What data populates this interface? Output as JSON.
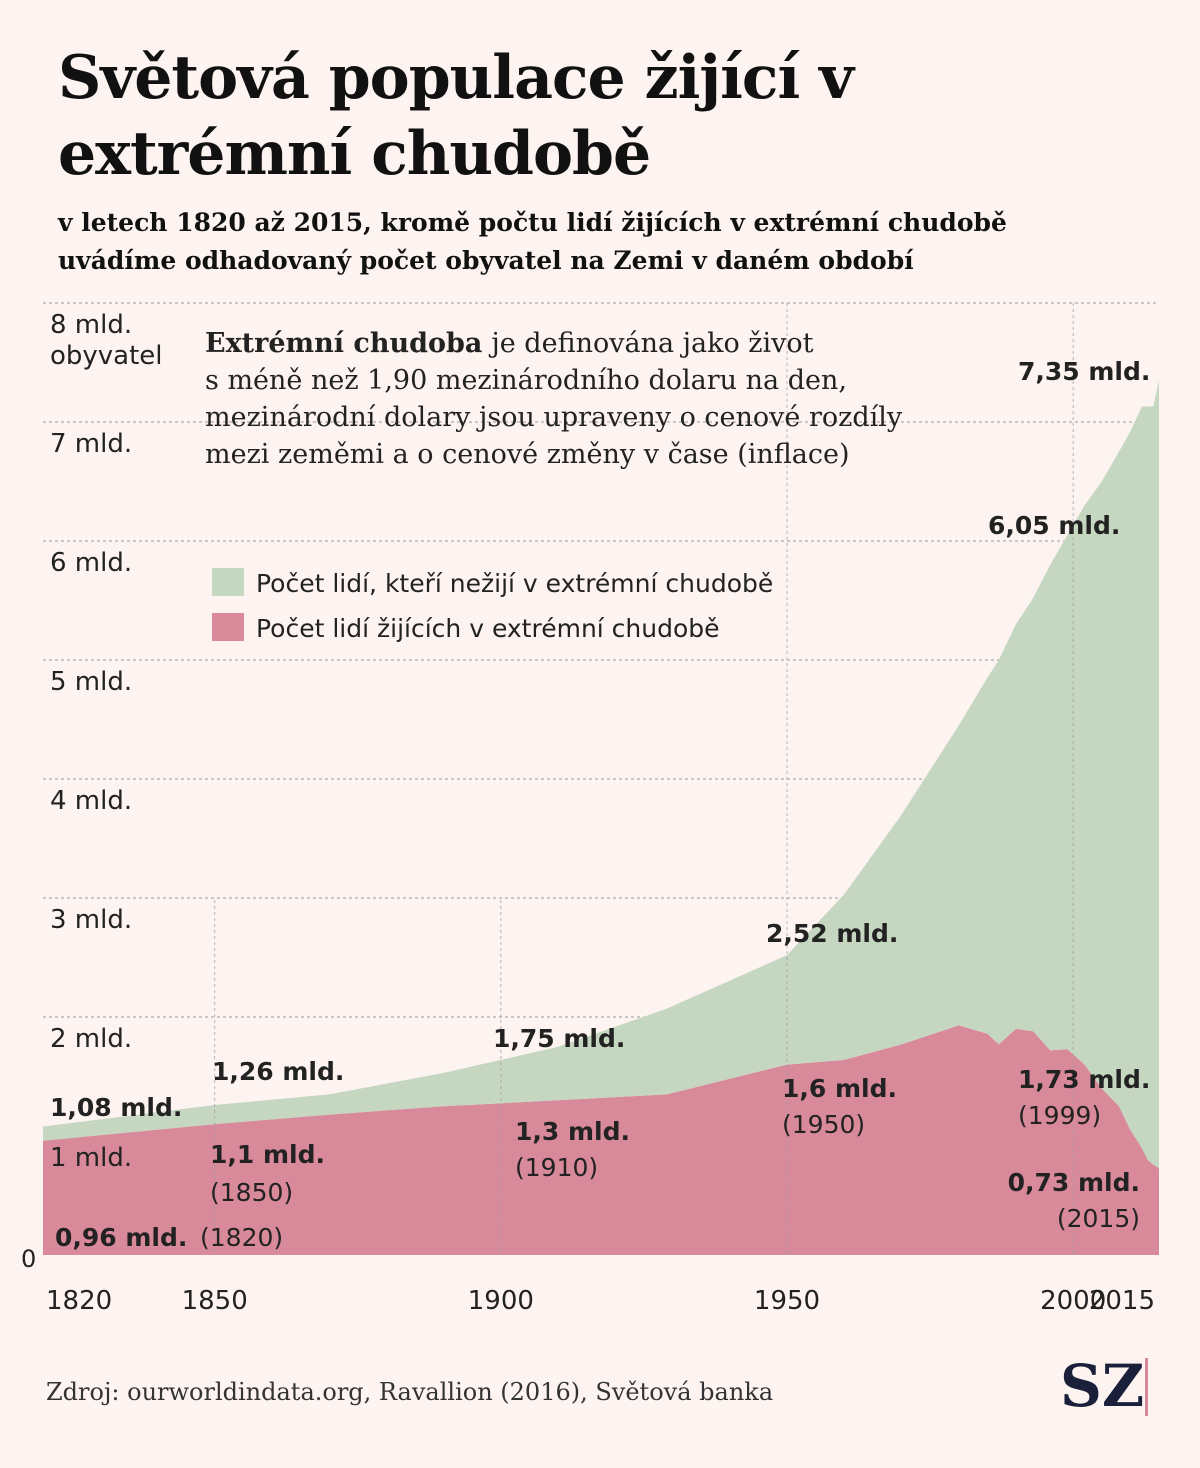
{
  "chart_data": {
    "type": "stacked_area",
    "title": "Světová populace žijící v extrémní chudobě",
    "subtitle": "v letech 1820 až 2015, kromě počtu lidí žijících v extrémní chudobě uvádíme odhadovaný počet obyvatel na Zemi v daném období",
    "x": [
      1820,
      1850,
      1870,
      1890,
      1910,
      1929,
      1950,
      1960,
      1970,
      1980,
      1985,
      1987,
      1990,
      1993,
      1996,
      1999,
      2002,
      2005,
      2008,
      2010,
      2012,
      2013,
      2014,
      2015
    ],
    "series": [
      {
        "name": "Počet lidí žijících v extrémní chudobě",
        "color": "#d98a9a",
        "values": [
          0.96,
          1.1,
          1.18,
          1.25,
          1.3,
          1.35,
          1.6,
          1.64,
          1.77,
          1.93,
          1.86,
          1.77,
          1.9,
          1.88,
          1.72,
          1.73,
          1.6,
          1.4,
          1.25,
          1.05,
          0.9,
          0.8,
          0.76,
          0.73
        ]
      },
      {
        "name": "Počet lidí, kteří nežijí v extrémní chudobě",
        "color": "#c5d6c1",
        "values": [
          0.12,
          0.16,
          0.17,
          0.28,
          0.45,
          0.72,
          0.92,
          1.39,
          1.93,
          2.52,
          2.99,
          3.23,
          3.4,
          3.64,
          4.08,
          4.32,
          4.7,
          5.1,
          5.5,
          5.87,
          6.23,
          6.33,
          6.37,
          6.62
        ]
      }
    ],
    "xlim": [
      1820,
      2015
    ],
    "xticks": [
      1820,
      1850,
      1900,
      1950,
      2000,
      2015
    ],
    "xgrid": [
      1850,
      1900,
      1950,
      2000
    ],
    "ylim": [
      0,
      8
    ],
    "yticks": [
      0,
      {
        "value": 1,
        "label": "1 mld."
      },
      {
        "value": 2,
        "label": "2 mld."
      },
      {
        "value": 3,
        "label": "3 mld."
      },
      {
        "value": 4,
        "label": "4 mld."
      },
      {
        "value": 5,
        "label": "5 mld."
      },
      {
        "value": 6,
        "label": "6 mld."
      },
      {
        "value": 7,
        "label": "7 mld."
      },
      {
        "value": 8,
        "label": "8 mld."
      }
    ],
    "y_axis_label": "obyvatel",
    "grid": true,
    "note": {
      "bold": "Extrémní chudoba",
      "lines": [
        "je definována jako život",
        "s méně než 1,90 mezinárodního dolaru na den,",
        "mezinárodní dolary jsou upraveny o cenové rozdíly",
        "mezi zeměmi a o cenové změny v čase (inflace)"
      ]
    },
    "annotations": [
      {
        "text": "1,08 mld."
      },
      {
        "text": "1,26 mld."
      },
      {
        "text": "1,75 mld."
      },
      {
        "text": "2,52 mld."
      },
      {
        "text": "6,05 mld."
      },
      {
        "text": "7,35 mld."
      },
      {
        "text": "0,96 mld.",
        "note": "(1820)"
      },
      {
        "text": "1,1 mld.",
        "note": "(1850)"
      },
      {
        "text": "1,3 mld.",
        "note": "(1910)"
      },
      {
        "text": "1,6 mld.",
        "note": "(1950)"
      },
      {
        "text": "1,73 mld.",
        "note": "(1999)"
      },
      {
        "text": "0,73 mld.",
        "note": "(2015)"
      }
    ],
    "source": "Zdroj: ourworldindata.org, Ravallion (2016), Světová banka",
    "logo": "SZ"
  }
}
